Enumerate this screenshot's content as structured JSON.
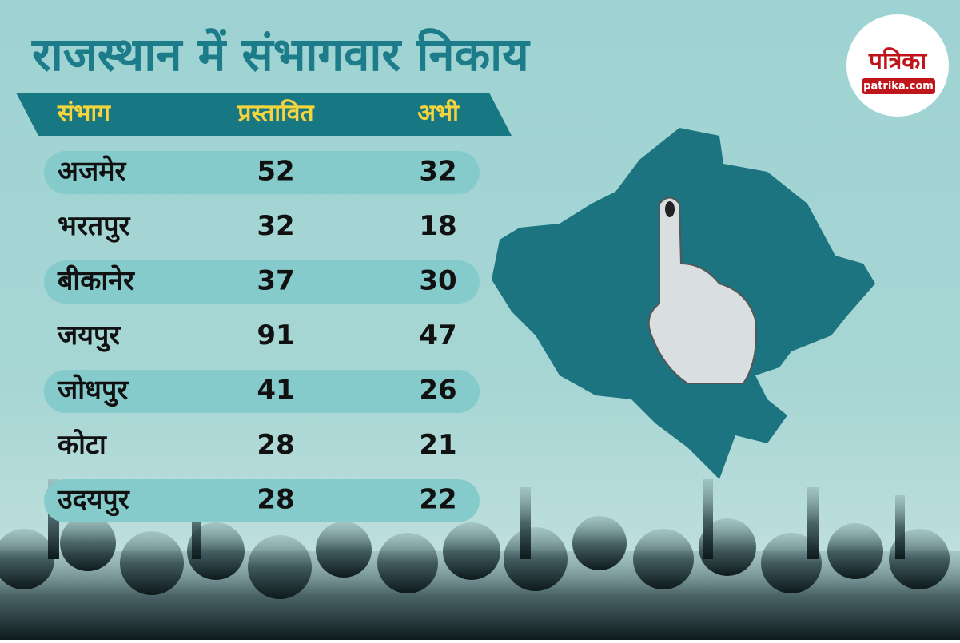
{
  "header": {
    "title": "राजस्थान में संभागवार निकाय"
  },
  "logo": {
    "name": "पत्रिका",
    "site": "patrika.com"
  },
  "table": {
    "columns": [
      "संभाग",
      "प्रस्तावित",
      "अभी"
    ],
    "rows": [
      [
        "अजमेर",
        52,
        32
      ],
      [
        "भरतपुर",
        32,
        18
      ],
      [
        "बीकानेर",
        37,
        30
      ],
      [
        "जयपुर",
        91,
        47
      ],
      [
        "जोधपुर",
        41,
        26
      ],
      [
        "कोटा",
        28,
        21
      ],
      [
        "उदयपुर",
        28,
        22
      ]
    ]
  }
}
